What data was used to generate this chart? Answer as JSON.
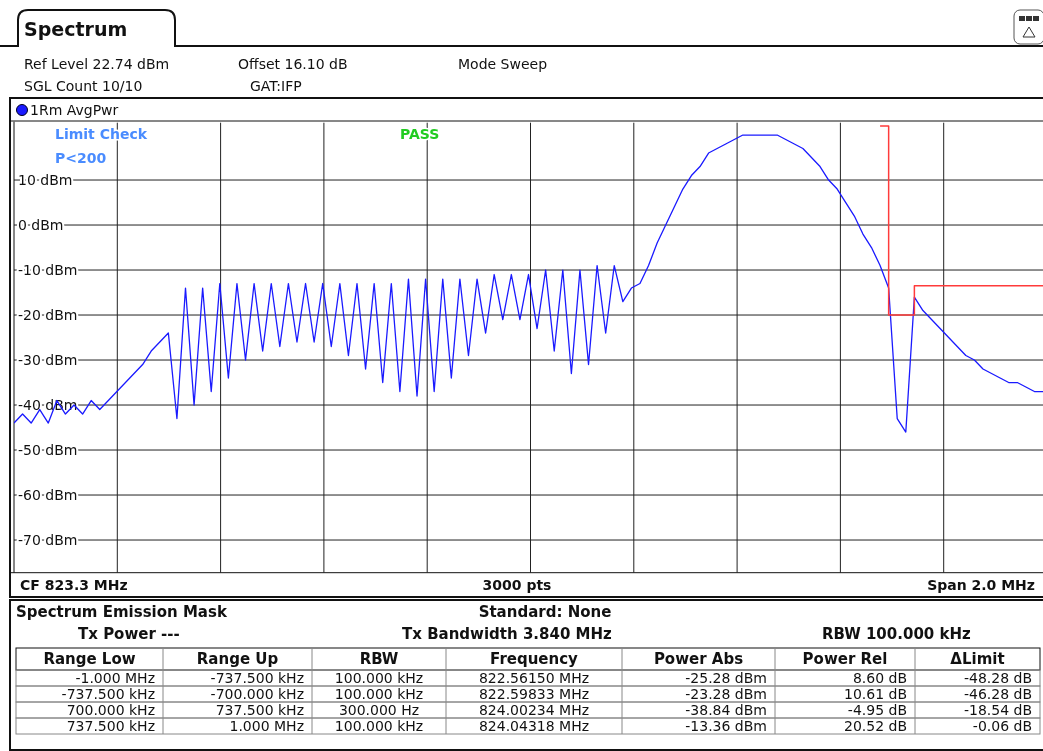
{
  "chart_data": [
    {
      "type": "line",
      "title": "Spectrum",
      "categories": [
        null,
        null,
        null,
        null,
        null,
        null,
        null,
        null,
        null,
        null,
        null,
        null,
        null,
        null,
        null,
        null,
        null,
        null,
        null,
        null,
        null,
        null,
        null,
        null,
        null,
        null,
        null,
        null,
        null,
        null,
        null,
        null,
        null,
        null,
        null,
        null,
        null,
        null,
        null,
        null,
        null,
        null,
        null,
        null,
        null,
        null,
        null,
        null,
        null,
        null,
        null,
        null,
        null,
        null,
        null,
        null,
        null,
        null,
        null,
        null,
        null,
        null,
        null,
        null,
        null,
        null,
        null,
        null,
        null,
        null,
        null,
        null,
        null,
        null,
        null,
        null,
        null,
        null,
        null,
        null,
        null,
        null,
        null,
        null,
        null,
        null,
        null,
        null,
        null,
        null,
        null,
        null,
        null,
        null,
        null,
        null,
        null,
        null,
        null,
        null,
        null,
        null,
        null,
        null,
        null,
        null,
        null,
        null,
        null,
        null,
        null,
        null,
        null,
        null,
        null,
        null,
        null,
        null,
        null,
        null,
        null
      ],
      "series": [
        {
          "name": "1Rm AvgPwr",
          "color": "#1a1aff",
          "values": [
            -44,
            -42,
            -44,
            -41,
            -44,
            -39,
            -42,
            -40,
            -42,
            -39,
            -41,
            -39,
            -37,
            -35,
            -33,
            -31,
            -28,
            -26,
            -24,
            -43,
            -14,
            -40,
            -14,
            -37,
            -13,
            -34,
            -13,
            -30,
            -13,
            -28,
            -13,
            -27,
            -13,
            -26,
            -13,
            -26,
            -13,
            -27,
            -13,
            -29,
            -13,
            -32,
            -13,
            -35,
            -13,
            -37,
            -12,
            -38,
            -12,
            -37,
            -12,
            -34,
            -12,
            -29,
            -12,
            -24,
            -11,
            -21,
            -11,
            -21,
            -11,
            -23,
            -10,
            -28,
            -10,
            -33,
            -10,
            -31,
            -9,
            -24,
            -9,
            -17,
            -14,
            -13,
            -9,
            -4,
            0,
            4,
            8,
            11,
            13,
            16,
            17,
            18,
            19,
            20,
            20,
            20,
            20,
            20,
            19,
            18,
            17,
            15,
            13,
            10,
            8,
            5,
            2,
            -2,
            -5,
            -9,
            -14,
            -43,
            -46,
            -16,
            -19,
            -21,
            -23,
            -25,
            -27,
            -29,
            -30,
            -32,
            -33,
            -34,
            -35,
            -35,
            -36,
            -37,
            -37
          ]
        },
        {
          "type": "step",
          "color": "#ff3b3b",
          "values": [
            null,
            null,
            null,
            null,
            null,
            null,
            null,
            null,
            null,
            null,
            null,
            null,
            null,
            null,
            null,
            null,
            null,
            null,
            null,
            null,
            null,
            null,
            null,
            null,
            null,
            null,
            null,
            null,
            null,
            null,
            null,
            null,
            null,
            null,
            null,
            null,
            null,
            null,
            null,
            null,
            null,
            null,
            null,
            null,
            null,
            null,
            null,
            null,
            null,
            null,
            null,
            null,
            null,
            null,
            null,
            null,
            null,
            null,
            null,
            null,
            null,
            null,
            null,
            null,
            null,
            null,
            null,
            null,
            null,
            null,
            null,
            null,
            null,
            null,
            null,
            null,
            null,
            null,
            null,
            null,
            null,
            null,
            null,
            null,
            null,
            null,
            null,
            null,
            null,
            null,
            null,
            null,
            null,
            null,
            null,
            null,
            null,
            null,
            null,
            null,
            null,
            22,
            -20,
            -20,
            -20,
            -13.5,
            -13.5,
            -13.5,
            -13.5,
            -13.5,
            -13.5,
            -13.5,
            -13.5,
            -13.5,
            -13.5,
            -13.5,
            -13.5,
            -13.5,
            -13.5,
            -13.5,
            -13.5
          ]
        }
      ],
      "ylim": [
        -77.26,
        22.74
      ],
      "yticks": [
        {
          "value": 10,
          "label": "10 dBm"
        },
        {
          "value": 0,
          "label": "0 dBm"
        },
        {
          "value": -10,
          "label": "-10 dBm"
        },
        {
          "value": -20,
          "label": "-20 dBm"
        },
        {
          "value": -30,
          "label": "-30 dBm"
        },
        {
          "value": -40,
          "label": "-40 dBm"
        },
        {
          "value": -50,
          "label": "-50 dBm"
        },
        {
          "value": -60,
          "label": "-60 dBm"
        },
        {
          "value": -70,
          "label": "-70 dBm"
        }
      ],
      "grid": true,
      "legend": "top left",
      "tick_labels": "y",
      "annotations": [
        "Ref Level 22.74 dBm",
        "Offset 16.10 dB",
        "Mode Sweep",
        "SGL Count 10/10",
        "GAT:IFP",
        "Limit Check",
        "PASS",
        "P<200",
        "CF 823.3 MHz",
        "3000 pts",
        "Span 2.0 MHz"
      ]
    },
    {
      "type": "other",
      "title": "Spectrum Emission Mask",
      "annotations": [
        "Standard: None",
        "Tx Power ---",
        "Tx Bandwidth 3.840 MHz",
        "RBW 100.000 kHz",
        "Range Low",
        "Range Up",
        "RBW",
        "Frequency",
        "Power Abs",
        "Power Rel",
        "ΔLimit",
        "-1.000 MHz",
        "-737.500 kHz",
        "100.000 kHz",
        "822.56150 MHz",
        "-25.28 dBm",
        "8.60 dB",
        "-48.28 dB",
        "-737.500 kHz",
        "-700.000 kHz",
        "100.000 kHz",
        "822.59833 MHz",
        "-23.28 dBm",
        "10.61 dB",
        "-46.28 dB",
        "700.000 kHz",
        "737.500 kHz",
        "300.000 Hz",
        "824.00234 MHz",
        "-38.84 dBm",
        "-4.95 dB",
        "-18.54 dB",
        "737.500 kHz",
        "1.000 MHz",
        "100.000 kHz",
        "824.04318 MHz",
        "-13.36 dBm",
        "20.52 dB",
        "-0.06 dB"
      ]
    }
  ]
}
